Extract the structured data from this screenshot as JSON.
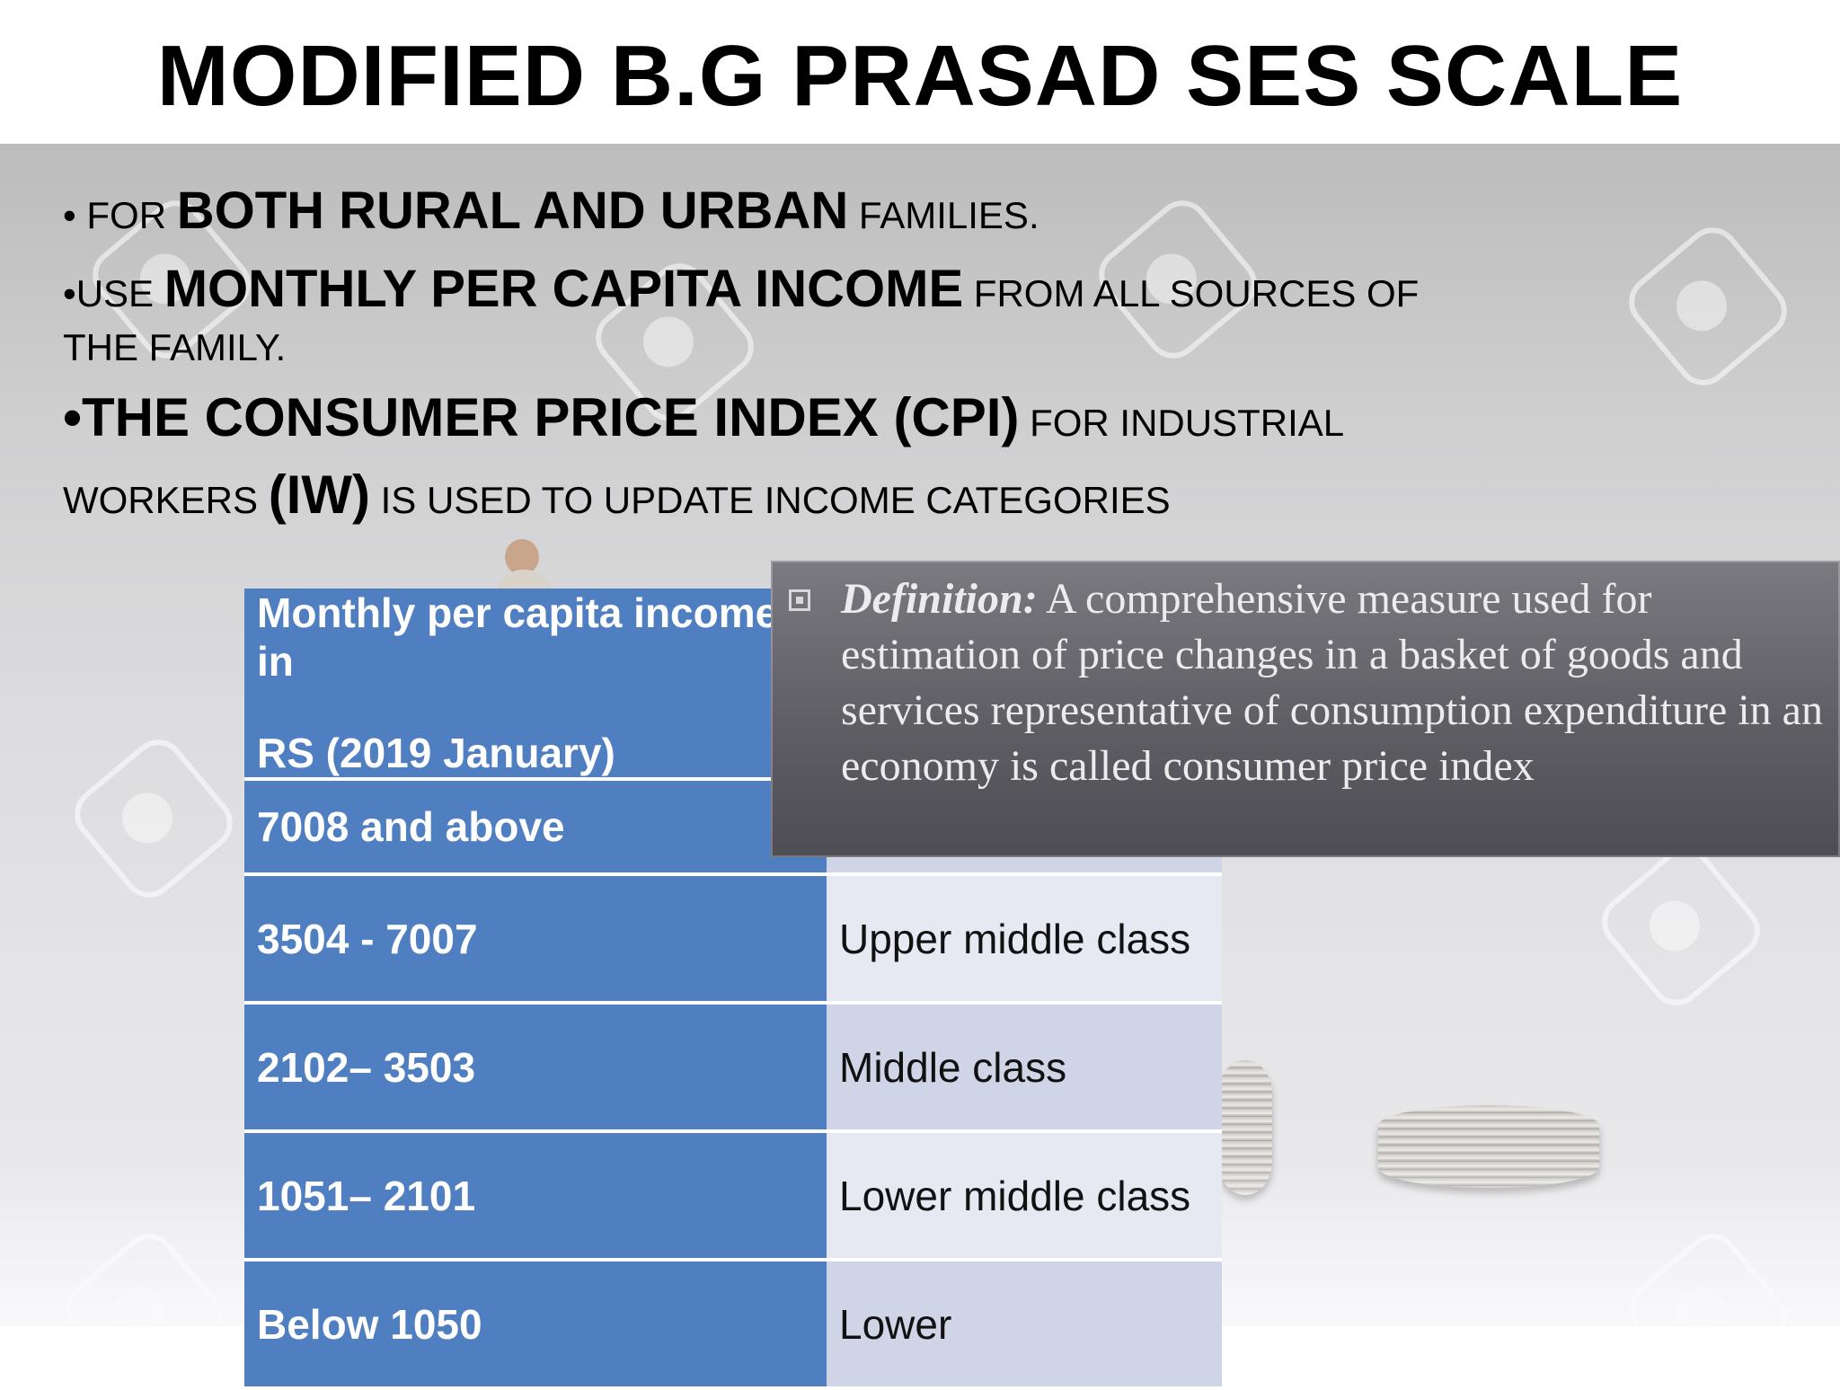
{
  "title": "MODIFIED B.G PRASAD SES SCALE",
  "bullets": {
    "line1": {
      "prefix": "• FOR ",
      "bold": "BOTH RURAL AND URBAN",
      "suffix": " FAMILIES."
    },
    "line2": {
      "prefix": "•USE ",
      "bold": "MONTHLY PER CAPITA INCOME",
      "suffix": " FROM ALL SOURCES OF"
    },
    "line3": {
      "text": "THE FAMILY."
    },
    "line4": {
      "prefix": "•",
      "bold": "THE CONSUMER PRICE INDEX (CPI)",
      "suffix": " FOR INDUSTRIAL"
    },
    "line5": {
      "prefix": "WORKERS ",
      "bold": "(IW)",
      "suffix": " IS USED TO UPDATE INCOME CATEGORIES"
    }
  },
  "table": {
    "header_line1": "Monthly per capita income in",
    "header_line2": "RS (2019 January)",
    "rows": [
      {
        "income": "7008 and above",
        "class": ""
      },
      {
        "income": "3504 - 7007",
        "class": "Upper middle class"
      },
      {
        "income": "2102– 3503",
        "class": "Middle class"
      },
      {
        "income": "1051– 2101",
        "class": "Lower middle class"
      },
      {
        "income": "Below 1050",
        "class": "Lower"
      }
    ]
  },
  "definition": {
    "term": "Definition:",
    "text": " A comprehensive measure used for estimation of price changes in a basket of goods and services representative of consumption expenditure in an economy is called consumer price index"
  },
  "colors": {
    "table_blue": "#4f7fc1",
    "definition_bg": "#5f5e64"
  }
}
